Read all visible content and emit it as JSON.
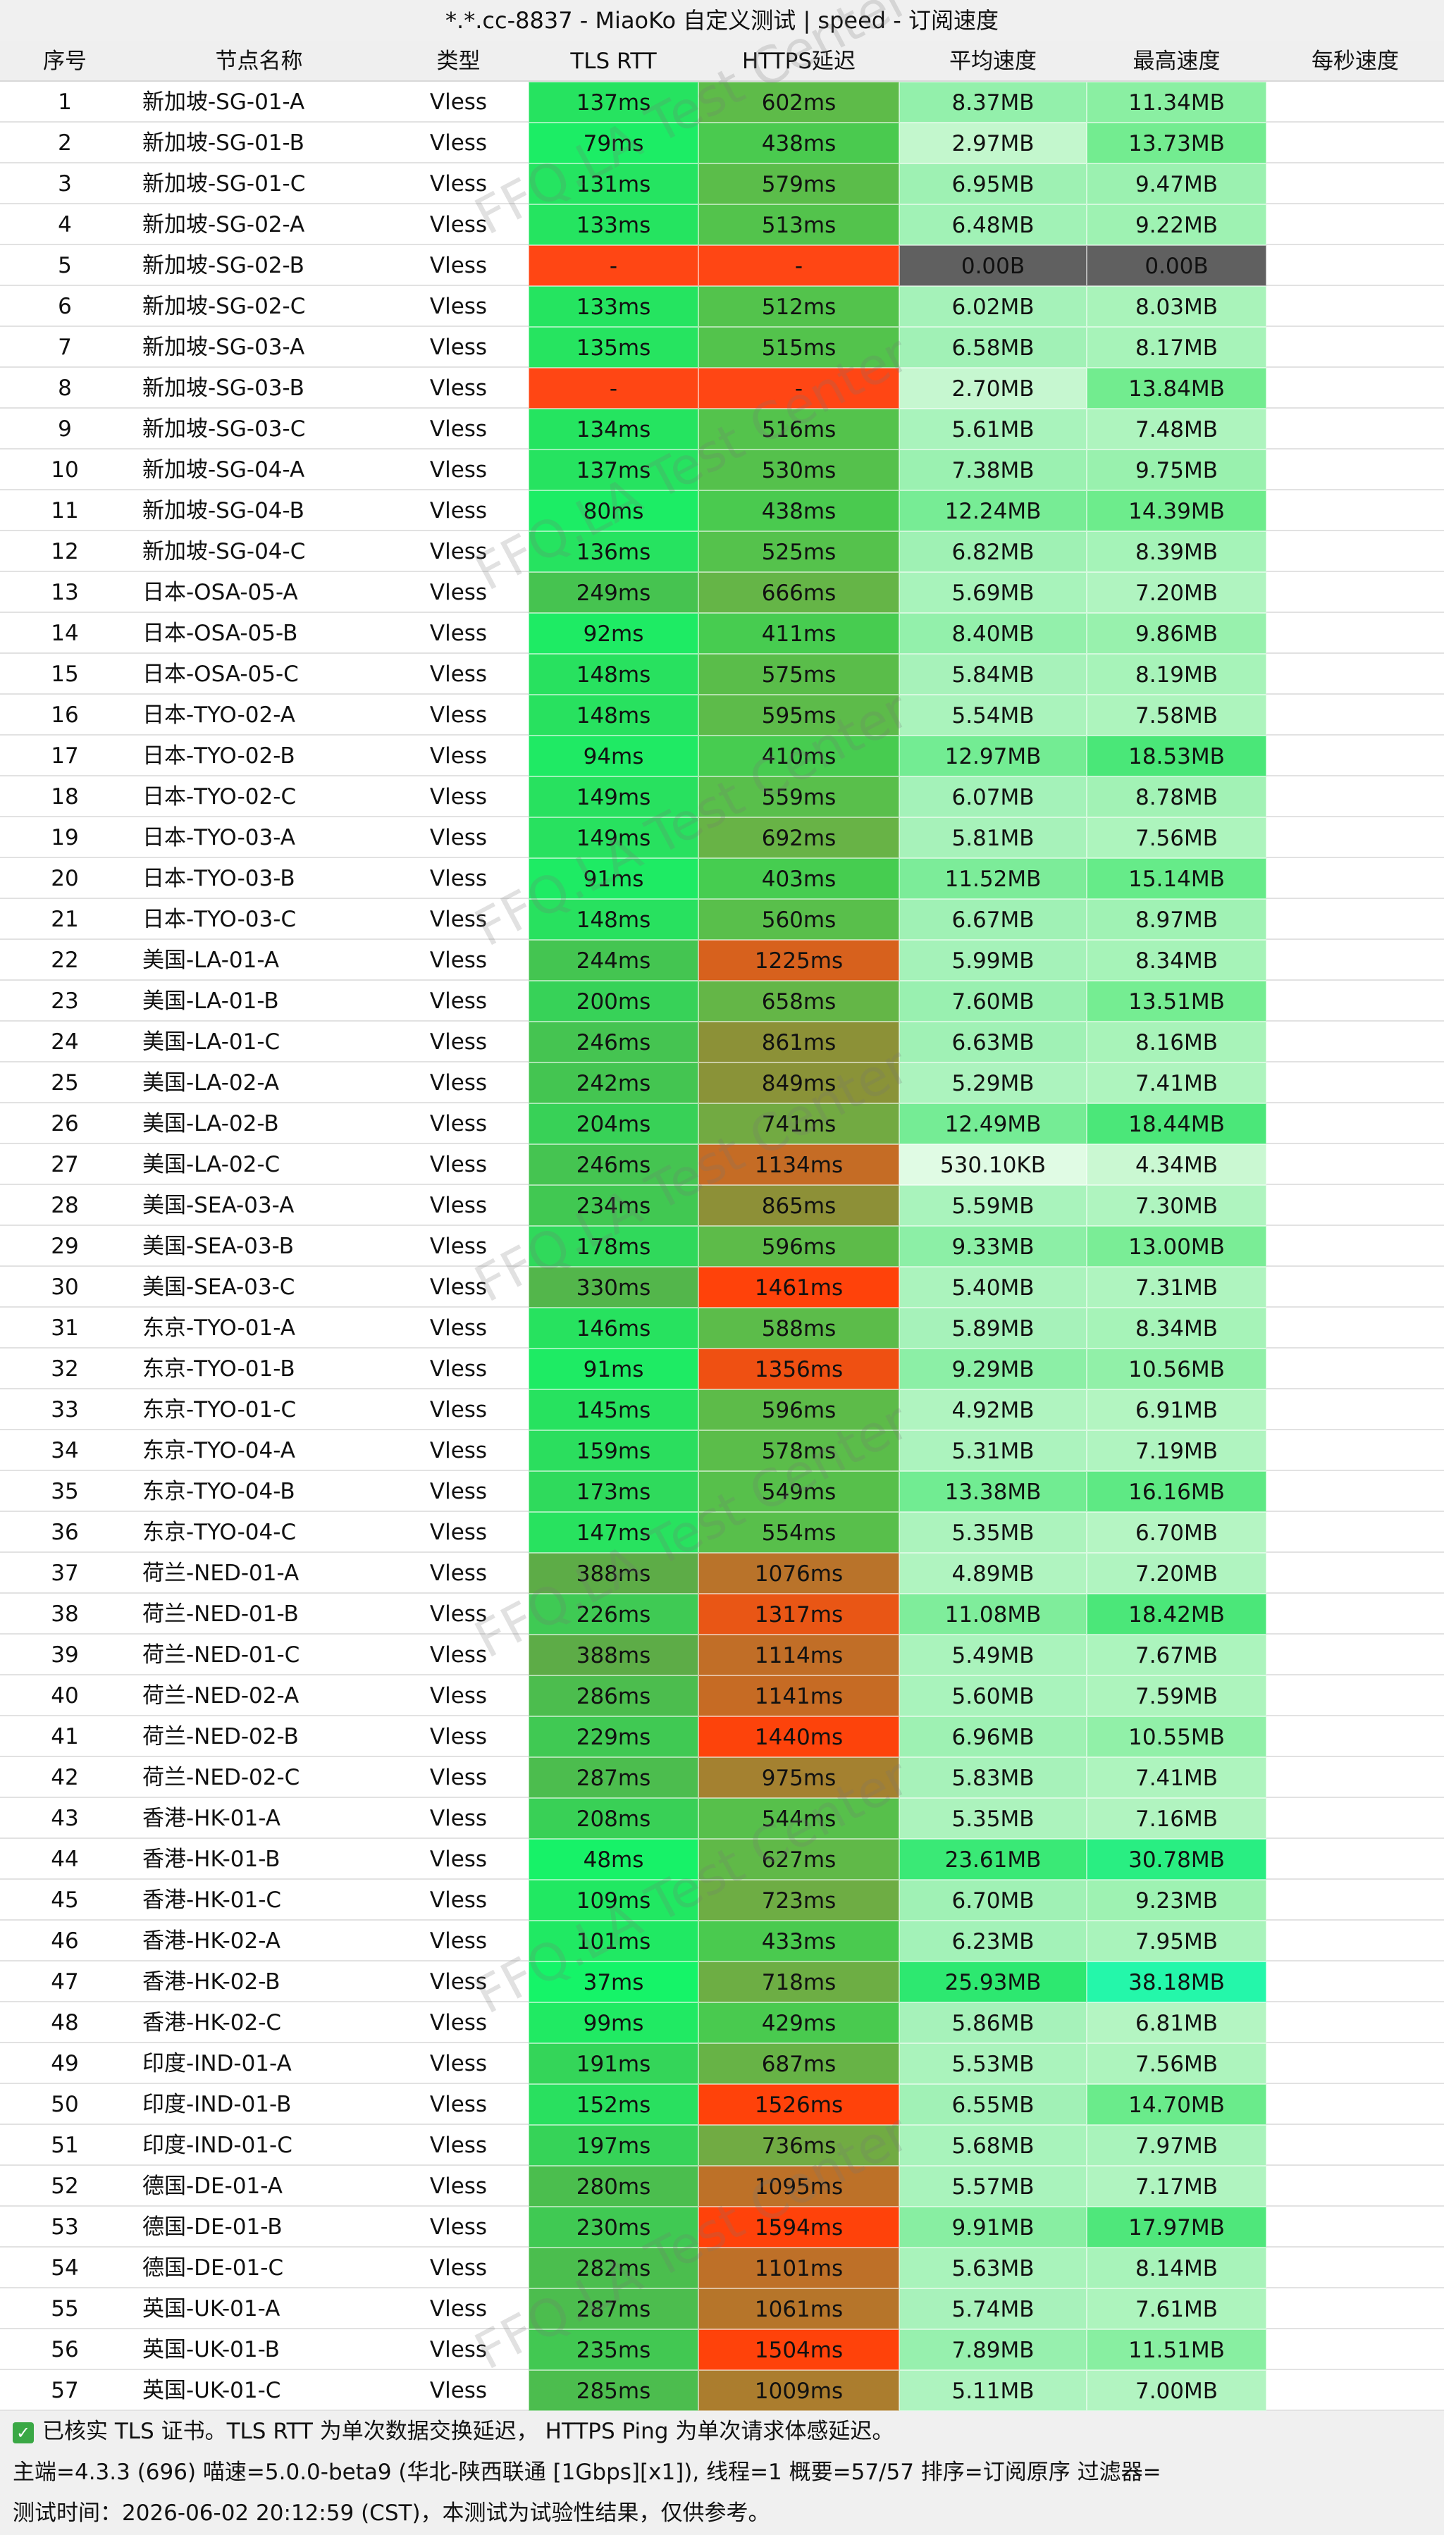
{
  "header": {
    "title": "*.*.cc-8837 - MiaoKo 自定义测试 | speed - 订阅速度"
  },
  "table": {
    "columns": [
      "序号",
      "节点名称",
      "类型",
      "TLS RTT",
      "HTTPS延迟",
      "平均速度",
      "最高速度",
      "每秒速度"
    ],
    "rows": [
      [
        "1",
        "新加坡-SG-01-A",
        "Vless",
        "137ms",
        "602ms",
        "8.37MB",
        "11.34MB"
      ],
      [
        "2",
        "新加坡-SG-01-B",
        "Vless",
        "79ms",
        "438ms",
        "2.97MB",
        "13.73MB"
      ],
      [
        "3",
        "新加坡-SG-01-C",
        "Vless",
        "131ms",
        "579ms",
        "6.95MB",
        "9.47MB"
      ],
      [
        "4",
        "新加坡-SG-02-A",
        "Vless",
        "133ms",
        "513ms",
        "6.48MB",
        "9.22MB"
      ],
      [
        "5",
        "新加坡-SG-02-B",
        "Vless",
        "-",
        "-",
        "0.00B",
        "0.00B"
      ],
      [
        "6",
        "新加坡-SG-02-C",
        "Vless",
        "133ms",
        "512ms",
        "6.02MB",
        "8.03MB"
      ],
      [
        "7",
        "新加坡-SG-03-A",
        "Vless",
        "135ms",
        "515ms",
        "6.58MB",
        "8.17MB"
      ],
      [
        "8",
        "新加坡-SG-03-B",
        "Vless",
        "-",
        "-",
        "2.70MB",
        "13.84MB"
      ],
      [
        "9",
        "新加坡-SG-03-C",
        "Vless",
        "134ms",
        "516ms",
        "5.61MB",
        "7.48MB"
      ],
      [
        "10",
        "新加坡-SG-04-A",
        "Vless",
        "137ms",
        "530ms",
        "7.38MB",
        "9.75MB"
      ],
      [
        "11",
        "新加坡-SG-04-B",
        "Vless",
        "80ms",
        "438ms",
        "12.24MB",
        "14.39MB"
      ],
      [
        "12",
        "新加坡-SG-04-C",
        "Vless",
        "136ms",
        "525ms",
        "6.82MB",
        "8.39MB"
      ],
      [
        "13",
        "日本-OSA-05-A",
        "Vless",
        "249ms",
        "666ms",
        "5.69MB",
        "7.20MB"
      ],
      [
        "14",
        "日本-OSA-05-B",
        "Vless",
        "92ms",
        "411ms",
        "8.40MB",
        "9.86MB"
      ],
      [
        "15",
        "日本-OSA-05-C",
        "Vless",
        "148ms",
        "575ms",
        "5.84MB",
        "8.19MB"
      ],
      [
        "16",
        "日本-TYO-02-A",
        "Vless",
        "148ms",
        "595ms",
        "5.54MB",
        "7.58MB"
      ],
      [
        "17",
        "日本-TYO-02-B",
        "Vless",
        "94ms",
        "410ms",
        "12.97MB",
        "18.53MB"
      ],
      [
        "18",
        "日本-TYO-02-C",
        "Vless",
        "149ms",
        "559ms",
        "6.07MB",
        "8.78MB"
      ],
      [
        "19",
        "日本-TYO-03-A",
        "Vless",
        "149ms",
        "692ms",
        "5.81MB",
        "7.56MB"
      ],
      [
        "20",
        "日本-TYO-03-B",
        "Vless",
        "91ms",
        "403ms",
        "11.52MB",
        "15.14MB"
      ],
      [
        "21",
        "日本-TYO-03-C",
        "Vless",
        "148ms",
        "560ms",
        "6.67MB",
        "8.97MB"
      ],
      [
        "22",
        "美国-LA-01-A",
        "Vless",
        "244ms",
        "1225ms",
        "5.99MB",
        "8.34MB"
      ],
      [
        "23",
        "美国-LA-01-B",
        "Vless",
        "200ms",
        "658ms",
        "7.60MB",
        "13.51MB"
      ],
      [
        "24",
        "美国-LA-01-C",
        "Vless",
        "246ms",
        "861ms",
        "6.63MB",
        "8.16MB"
      ],
      [
        "25",
        "美国-LA-02-A",
        "Vless",
        "242ms",
        "849ms",
        "5.29MB",
        "7.41MB"
      ],
      [
        "26",
        "美国-LA-02-B",
        "Vless",
        "204ms",
        "741ms",
        "12.49MB",
        "18.44MB"
      ],
      [
        "27",
        "美国-LA-02-C",
        "Vless",
        "246ms",
        "1134ms",
        "530.10KB",
        "4.34MB"
      ],
      [
        "28",
        "美国-SEA-03-A",
        "Vless",
        "234ms",
        "865ms",
        "5.59MB",
        "7.30MB"
      ],
      [
        "29",
        "美国-SEA-03-B",
        "Vless",
        "178ms",
        "596ms",
        "9.33MB",
        "13.00MB"
      ],
      [
        "30",
        "美国-SEA-03-C",
        "Vless",
        "330ms",
        "1461ms",
        "5.40MB",
        "7.31MB"
      ],
      [
        "31",
        "东京-TYO-01-A",
        "Vless",
        "146ms",
        "588ms",
        "5.89MB",
        "8.34MB"
      ],
      [
        "32",
        "东京-TYO-01-B",
        "Vless",
        "91ms",
        "1356ms",
        "9.29MB",
        "10.56MB"
      ],
      [
        "33",
        "东京-TYO-01-C",
        "Vless",
        "145ms",
        "596ms",
        "4.92MB",
        "6.91MB"
      ],
      [
        "34",
        "东京-TYO-04-A",
        "Vless",
        "159ms",
        "578ms",
        "5.31MB",
        "7.19MB"
      ],
      [
        "35",
        "东京-TYO-04-B",
        "Vless",
        "173ms",
        "549ms",
        "13.38MB",
        "16.16MB"
      ],
      [
        "36",
        "东京-TYO-04-C",
        "Vless",
        "147ms",
        "554ms",
        "5.35MB",
        "6.70MB"
      ],
      [
        "37",
        "荷兰-NED-01-A",
        "Vless",
        "388ms",
        "1076ms",
        "4.89MB",
        "7.20MB"
      ],
      [
        "38",
        "荷兰-NED-01-B",
        "Vless",
        "226ms",
        "1317ms",
        "11.08MB",
        "18.42MB"
      ],
      [
        "39",
        "荷兰-NED-01-C",
        "Vless",
        "388ms",
        "1114ms",
        "5.49MB",
        "7.67MB"
      ],
      [
        "40",
        "荷兰-NED-02-A",
        "Vless",
        "286ms",
        "1141ms",
        "5.60MB",
        "7.59MB"
      ],
      [
        "41",
        "荷兰-NED-02-B",
        "Vless",
        "229ms",
        "1440ms",
        "6.96MB",
        "10.55MB"
      ],
      [
        "42",
        "荷兰-NED-02-C",
        "Vless",
        "287ms",
        "975ms",
        "5.83MB",
        "7.41MB"
      ],
      [
        "43",
        "香港-HK-01-A",
        "Vless",
        "208ms",
        "544ms",
        "5.35MB",
        "7.16MB"
      ],
      [
        "44",
        "香港-HK-01-B",
        "Vless",
        "48ms",
        "627ms",
        "23.61MB",
        "30.78MB"
      ],
      [
        "45",
        "香港-HK-01-C",
        "Vless",
        "109ms",
        "723ms",
        "6.70MB",
        "9.23MB"
      ],
      [
        "46",
        "香港-HK-02-A",
        "Vless",
        "101ms",
        "433ms",
        "6.23MB",
        "7.95MB"
      ],
      [
        "47",
        "香港-HK-02-B",
        "Vless",
        "37ms",
        "718ms",
        "25.93MB",
        "38.18MB"
      ],
      [
        "48",
        "香港-HK-02-C",
        "Vless",
        "99ms",
        "429ms",
        "5.86MB",
        "6.81MB"
      ],
      [
        "49",
        "印度-IND-01-A",
        "Vless",
        "191ms",
        "687ms",
        "5.53MB",
        "7.56MB"
      ],
      [
        "50",
        "印度-IND-01-B",
        "Vless",
        "152ms",
        "1526ms",
        "6.55MB",
        "14.70MB"
      ],
      [
        "51",
        "印度-IND-01-C",
        "Vless",
        "197ms",
        "736ms",
        "5.68MB",
        "7.97MB"
      ],
      [
        "52",
        "德国-DE-01-A",
        "Vless",
        "280ms",
        "1095ms",
        "5.57MB",
        "7.17MB"
      ],
      [
        "53",
        "德国-DE-01-B",
        "Vless",
        "230ms",
        "1594ms",
        "9.91MB",
        "17.97MB"
      ],
      [
        "54",
        "德国-DE-01-C",
        "Vless",
        "282ms",
        "1101ms",
        "5.63MB",
        "8.14MB"
      ],
      [
        "55",
        "英国-UK-01-A",
        "Vless",
        "287ms",
        "1061ms",
        "5.74MB",
        "7.61MB"
      ],
      [
        "56",
        "英国-UK-01-B",
        "Vless",
        "235ms",
        "1504ms",
        "7.89MB",
        "11.51MB"
      ],
      [
        "57",
        "英国-UK-01-C",
        "Vless",
        "285ms",
        "1009ms",
        "5.11MB",
        "7.00MB"
      ]
    ]
  },
  "watermark": "FFQ.LA Test Center",
  "footer": {
    "line1": "已核实 TLS 证书。TLS RTT 为单次数据交换延迟， HTTPS Ping 为单次请求体感延迟。",
    "line2": "主端=4.3.3 (696) 喵速=5.0.0-beta9 (华北-陕西联通 [1Gbps][x1]), 线程=1 概要=57/57 排序=订阅原序 过滤器=",
    "line3": "测试时间：2026-06-02 20:12:59 (CST)，本测试为试验性结果，仅供参考。"
  }
}
